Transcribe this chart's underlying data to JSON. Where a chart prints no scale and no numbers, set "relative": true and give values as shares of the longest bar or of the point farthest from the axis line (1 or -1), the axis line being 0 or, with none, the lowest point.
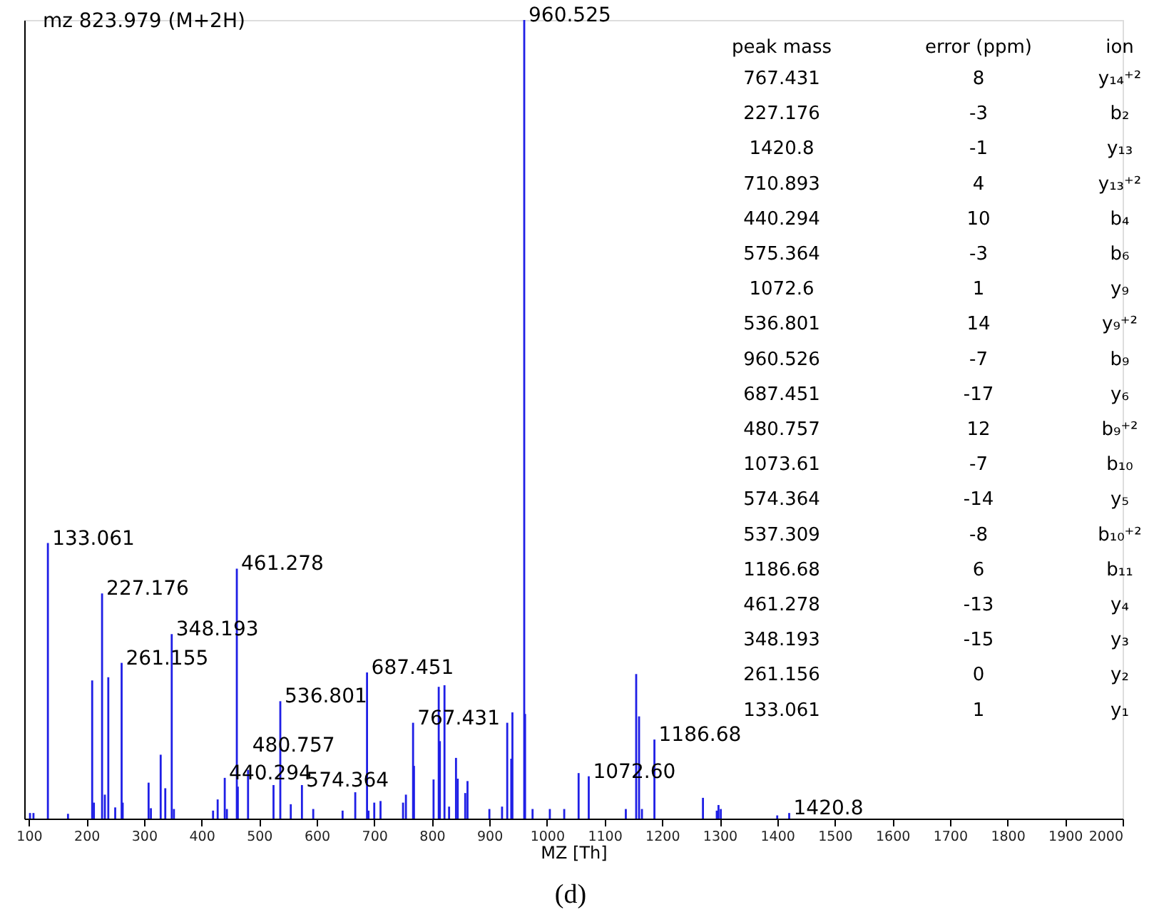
{
  "chart_data": {
    "type": "bar",
    "title": "mz 823.979 (M+2H)",
    "xlabel": "MZ [Th]",
    "relative": true,
    "xlim": [
      92,
      2000
    ],
    "xticks": [
      100,
      200,
      300,
      400,
      500,
      600,
      700,
      800,
      900,
      1000,
      1100,
      1200,
      1300,
      1400,
      1500,
      1600,
      1700,
      1800,
      1900,
      2000
    ],
    "x": [
      102,
      108,
      133.061,
      168,
      210,
      213,
      227.176,
      232,
      238,
      250,
      261.155,
      263,
      308,
      312,
      329,
      337,
      348.193,
      352,
      420,
      428,
      440.294,
      444,
      461.278,
      463,
      480.757,
      525,
      536.801,
      555,
      574.364,
      594,
      645,
      667,
      687.451,
      690,
      700,
      710.893,
      750,
      755,
      767.431,
      769,
      803,
      812,
      814,
      822,
      830,
      842,
      845,
      858,
      862,
      900,
      922,
      931,
      938,
      940,
      960.525,
      962,
      975,
      1005,
      1030,
      1055,
      1072.6,
      1137,
      1155,
      1160,
      1165,
      1186.68,
      1271,
      1295,
      1298,
      1302,
      1400,
      1420.8
    ],
    "series": [
      {
        "color": "#1f1fe6",
        "values": [
          0.007,
          0.007,
          0.345,
          0.006,
          0.173,
          0.02,
          0.282,
          0.03,
          0.177,
          0.014,
          0.195,
          0.02,
          0.045,
          0.013,
          0.08,
          0.038,
          0.231,
          0.012,
          0.01,
          0.024,
          0.051,
          0.012,
          0.313,
          0.04,
          0.061,
          0.042,
          0.147,
          0.018,
          0.042,
          0.012,
          0.01,
          0.033,
          0.183,
          0.01,
          0.02,
          0.022,
          0.02,
          0.03,
          0.12,
          0.066,
          0.049,
          0.165,
          0.097,
          0.167,
          0.015,
          0.076,
          0.05,
          0.032,
          0.047,
          0.012,
          0.015,
          0.12,
          0.075,
          0.133,
          1.0,
          0.131,
          0.012,
          0.012,
          0.012,
          0.057,
          0.053,
          0.012,
          0.181,
          0.128,
          0.012,
          0.099,
          0.026,
          0.01,
          0.017,
          0.012,
          0.004,
          0.007
        ]
      }
    ],
    "annotations": [
      {
        "text": "133.061",
        "x": 133.061,
        "y": 0.345
      },
      {
        "text": "227.176",
        "x": 227.176,
        "y": 0.282
      },
      {
        "text": "261.155",
        "x": 261.155,
        "y": 0.195
      },
      {
        "text": "348.193",
        "x": 348.193,
        "y": 0.231
      },
      {
        "text": "440.294",
        "x": 440.294,
        "y": 0.051
      },
      {
        "text": "461.278",
        "x": 461.278,
        "y": 0.313
      },
      {
        "text": "480.757",
        "x": 480.757,
        "y": 0.061
      },
      {
        "text": "536.801",
        "x": 536.801,
        "y": 0.147
      },
      {
        "text": "574.364",
        "x": 574.364,
        "y": 0.042
      },
      {
        "text": "687.451",
        "x": 687.451,
        "y": 0.183
      },
      {
        "text": "767.431",
        "x": 767.431,
        "y": 0.12
      },
      {
        "text": "960.525",
        "x": 960.525,
        "y": 1.0
      },
      {
        "text": "1072.60",
        "x": 1072.6,
        "y": 0.053
      },
      {
        "text": "1186.68",
        "x": 1186.68,
        "y": 0.099
      },
      {
        "text": "1420.8",
        "x": 1420.8,
        "y": 0.007
      },
      "peak mass",
      "error (ppm)",
      "ion",
      "767.431",
      "8",
      "y₁₄⁺²",
      "227.176",
      "-3",
      "b₂",
      "1420.8",
      "-1",
      "y₁₃",
      "710.893",
      "4",
      "y₁₃⁺²",
      "440.294",
      "10",
      "b₄",
      "575.364",
      "-3",
      "b₆",
      "1072.6",
      "1",
      "y₉",
      "536.801",
      "14",
      "y₉⁺²",
      "960.526",
      "-7",
      "b₉",
      "687.451",
      "-17",
      "y₆",
      "480.757",
      "12",
      "b₉⁺²",
      "1073.61",
      "-7",
      "b₁₀",
      "574.364",
      "-14",
      "y₅",
      "537.309",
      "-8",
      "b₁₀⁺²",
      "1186.68",
      "6",
      "b₁₁",
      "461.278",
      "-13",
      "y₄",
      "348.193",
      "-15",
      "y₃",
      "261.156",
      "0",
      "y₂",
      "133.061",
      "1",
      "y₁",
      "(d)"
    ]
  }
}
